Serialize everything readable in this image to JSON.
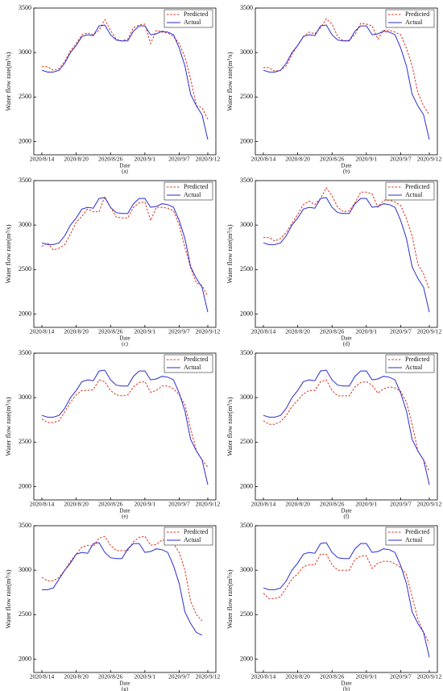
{
  "chart_data": [
    {
      "type": "line",
      "label": "(a)",
      "x_label": "Date",
      "y_label": "Water flow rate(m³/s)",
      "legend": "upper right",
      "categories": [
        "2020/8/14",
        null,
        null,
        null,
        null,
        null,
        "2020/8/20",
        null,
        null,
        null,
        null,
        null,
        "2020/8/26",
        null,
        null,
        null,
        null,
        null,
        "2020/9/1",
        null,
        null,
        null,
        null,
        null,
        "2020/9/7",
        null,
        null,
        null,
        null,
        "2020/9/12"
      ],
      "ylim": [
        1850,
        3500
      ],
      "yticks": [
        2000,
        2500,
        3000,
        3500
      ],
      "series": [
        {
          "name": "Predicted",
          "color": "#d9341f",
          "linestyle": "dashed",
          "values": [
            2840,
            2840,
            2800,
            2820,
            2900,
            3020,
            3100,
            3200,
            3220,
            3200,
            3250,
            3370,
            3250,
            3150,
            3130,
            3150,
            3280,
            3310,
            3320,
            3100,
            3250,
            3230,
            3220,
            3180,
            3100,
            2950,
            2700,
            2400,
            2380,
            2250
          ]
        },
        {
          "name": "Actual",
          "color": "#2b2bd0",
          "linestyle": "solid",
          "values": [
            2800,
            2780,
            2780,
            2800,
            2880,
            3000,
            3080,
            3180,
            3200,
            3190,
            3300,
            3310,
            3200,
            3140,
            3130,
            3130,
            3240,
            3300,
            3300,
            3200,
            3210,
            3240,
            3230,
            3200,
            3050,
            2850,
            2530,
            2400,
            2300,
            2020
          ]
        }
      ]
    },
    {
      "type": "line",
      "label": "(b)",
      "x_label": "Date",
      "y_label": "Water flow rate(m³/s)",
      "legend": "upper right",
      "categories": [
        "2020/8/14",
        null,
        null,
        null,
        null,
        null,
        "2020/8/20",
        null,
        null,
        null,
        null,
        null,
        "2020/8/26",
        null,
        null,
        null,
        null,
        null,
        "2020/9/1",
        null,
        null,
        null,
        null,
        null,
        "2020/9/7",
        null,
        null,
        null,
        null,
        "2020/9/12"
      ],
      "ylim": [
        1850,
        3500
      ],
      "yticks": [
        2000,
        2500,
        3000,
        3500
      ],
      "series": [
        {
          "name": "Predicted",
          "color": "#d9341f",
          "linestyle": "dashed",
          "values": [
            2830,
            2830,
            2790,
            2800,
            2850,
            2980,
            3080,
            3180,
            3230,
            3210,
            3280,
            3380,
            3320,
            3180,
            3130,
            3140,
            3200,
            3330,
            3320,
            3300,
            3150,
            3250,
            3250,
            3230,
            3200,
            3050,
            2850,
            2550,
            2400,
            2300
          ]
        },
        {
          "name": "Actual",
          "color": "#2b2bd0",
          "linestyle": "solid",
          "values": [
            2800,
            2780,
            2780,
            2800,
            2880,
            3000,
            3080,
            3180,
            3200,
            3190,
            3300,
            3310,
            3200,
            3140,
            3130,
            3130,
            3240,
            3300,
            3300,
            3200,
            3210,
            3240,
            3230,
            3200,
            3050,
            2850,
            2530,
            2400,
            2300,
            2020
          ]
        }
      ]
    },
    {
      "type": "line",
      "label": "(c)",
      "x_label": "Date",
      "y_label": "Water flow rate(m³/s)",
      "legend": "upper right",
      "categories": [
        "2020/8/14",
        null,
        null,
        null,
        null,
        null,
        "2020/8/20",
        null,
        null,
        null,
        null,
        null,
        "2020/8/26",
        null,
        null,
        null,
        null,
        null,
        "2020/9/1",
        null,
        null,
        null,
        null,
        null,
        "2020/9/7",
        null,
        null,
        null,
        null,
        "2020/9/12"
      ],
      "ylim": [
        1850,
        3500
      ],
      "yticks": [
        2000,
        2500,
        3000,
        3500
      ],
      "series": [
        {
          "name": "Predicted",
          "color": "#d9341f",
          "linestyle": "dashed",
          "values": [
            2760,
            2800,
            2720,
            2740,
            2780,
            2900,
            3030,
            3100,
            3180,
            3150,
            3150,
            3320,
            3200,
            3090,
            3080,
            3080,
            3200,
            3250,
            3260,
            3050,
            3200,
            3200,
            3190,
            3160,
            3000,
            2750,
            2520,
            2350,
            2320,
            2200
          ]
        },
        {
          "name": "Actual",
          "color": "#2b2bd0",
          "linestyle": "solid",
          "values": [
            2800,
            2780,
            2780,
            2800,
            2880,
            3000,
            3080,
            3180,
            3200,
            3190,
            3300,
            3310,
            3200,
            3140,
            3130,
            3130,
            3240,
            3300,
            3300,
            3200,
            3210,
            3240,
            3230,
            3200,
            3050,
            2850,
            2530,
            2400,
            2300,
            2020
          ]
        }
      ]
    },
    {
      "type": "line",
      "label": "(d)",
      "x_label": "Date",
      "y_label": "Water flow rate(m³/s)",
      "legend": "upper right",
      "categories": [
        "2020/8/14",
        null,
        null,
        null,
        null,
        null,
        "2020/8/20",
        null,
        null,
        null,
        null,
        null,
        "2020/8/26",
        null,
        null,
        null,
        null,
        null,
        "2020/9/1",
        null,
        null,
        null,
        null,
        null,
        "2020/9/7",
        null,
        null,
        null,
        null,
        "2020/9/12"
      ],
      "ylim": [
        1850,
        3500
      ],
      "yticks": [
        2000,
        2500,
        3000,
        3500
      ],
      "series": [
        {
          "name": "Predicted",
          "color": "#d9341f",
          "linestyle": "dashed",
          "values": [
            2860,
            2860,
            2820,
            2850,
            2920,
            3020,
            3120,
            3230,
            3270,
            3230,
            3300,
            3420,
            3330,
            3200,
            3150,
            3160,
            3250,
            3370,
            3370,
            3350,
            3200,
            3280,
            3280,
            3260,
            3220,
            3070,
            2880,
            2560,
            2450,
            2280
          ]
        },
        {
          "name": "Actual",
          "color": "#2b2bd0",
          "linestyle": "solid",
          "values": [
            2800,
            2780,
            2780,
            2800,
            2880,
            3000,
            3080,
            3180,
            3200,
            3190,
            3300,
            3310,
            3200,
            3140,
            3130,
            3130,
            3240,
            3300,
            3300,
            3200,
            3210,
            3240,
            3230,
            3200,
            3050,
            2850,
            2530,
            2400,
            2300,
            2020
          ]
        }
      ]
    },
    {
      "type": "line",
      "label": "(e)",
      "x_label": "Date",
      "y_label": "Water flow rate(m³/s)",
      "legend": "upper right",
      "categories": [
        "2020/8/14",
        null,
        null,
        null,
        null,
        null,
        "2020/8/20",
        null,
        null,
        null,
        null,
        null,
        "2020/8/26",
        null,
        null,
        null,
        null,
        null,
        "2020/9/1",
        null,
        null,
        null,
        null,
        null,
        "2020/9/7",
        null,
        null,
        null,
        null,
        "2020/9/12"
      ],
      "ylim": [
        1850,
        3500
      ],
      "yticks": [
        2000,
        2500,
        3000,
        3500
      ],
      "series": [
        {
          "name": "Predicted",
          "color": "#d9341f",
          "linestyle": "dashed",
          "values": [
            2760,
            2720,
            2720,
            2740,
            2840,
            2950,
            3030,
            3080,
            3080,
            3090,
            3200,
            3180,
            3080,
            3030,
            3020,
            3030,
            3120,
            3170,
            3180,
            3060,
            3080,
            3130,
            3130,
            3100,
            3030,
            2920,
            2650,
            2400,
            2300,
            2220
          ]
        },
        {
          "name": "Actual",
          "color": "#2b2bd0",
          "linestyle": "solid",
          "values": [
            2800,
            2780,
            2780,
            2800,
            2880,
            3000,
            3080,
            3180,
            3200,
            3190,
            3300,
            3310,
            3200,
            3140,
            3130,
            3130,
            3240,
            3300,
            3300,
            3200,
            3210,
            3240,
            3230,
            3200,
            3050,
            2850,
            2530,
            2400,
            2300,
            2020
          ]
        }
      ]
    },
    {
      "type": "line",
      "label": "(f)",
      "x_label": "Date",
      "y_label": "Water flow rate(m³/s)",
      "legend": "upper right",
      "categories": [
        "2020/8/14",
        null,
        null,
        null,
        null,
        null,
        "2020/8/20",
        null,
        null,
        null,
        null,
        null,
        "2020/8/26",
        null,
        null,
        null,
        null,
        null,
        "2020/9/1",
        null,
        null,
        null,
        null,
        null,
        "2020/9/7",
        null,
        null,
        null,
        null,
        "2020/9/12"
      ],
      "ylim": [
        1850,
        3500
      ],
      "yticks": [
        2000,
        2500,
        3000,
        3500
      ],
      "series": [
        {
          "name": "Predicted",
          "color": "#d9341f",
          "linestyle": "dashed",
          "values": [
            2740,
            2700,
            2700,
            2730,
            2800,
            2900,
            2970,
            3040,
            3080,
            3080,
            3180,
            3200,
            3080,
            3020,
            3020,
            3020,
            3120,
            3170,
            3180,
            3140,
            3050,
            3100,
            3120,
            3110,
            3070,
            2950,
            2700,
            2400,
            2300,
            2170
          ]
        },
        {
          "name": "Actual",
          "color": "#2b2bd0",
          "linestyle": "solid",
          "values": [
            2800,
            2780,
            2780,
            2800,
            2880,
            3000,
            3080,
            3180,
            3200,
            3190,
            3300,
            3310,
            3200,
            3140,
            3130,
            3130,
            3240,
            3300,
            3300,
            3200,
            3210,
            3240,
            3230,
            3200,
            3050,
            2850,
            2530,
            2400,
            2300,
            2020
          ]
        }
      ]
    },
    {
      "type": "line",
      "label": "(g)",
      "x_label": "Date",
      "y_label": "Water flow rate(m³/s)",
      "legend": "upper right",
      "categories": [
        "2020/8/14",
        null,
        null,
        null,
        null,
        null,
        "2020/8/20",
        null,
        null,
        null,
        null,
        null,
        "2020/8/26",
        null,
        null,
        null,
        null,
        null,
        "2020/9/1",
        null,
        null,
        null,
        null,
        null,
        "2020/9/7",
        null,
        null,
        null,
        null,
        "2020/9/12"
      ],
      "ylim": [
        1850,
        3500
      ],
      "yticks": [
        2000,
        2500,
        3000,
        3500
      ],
      "series": [
        {
          "name": "Predicted",
          "color": "#d9341f",
          "linestyle": "dashed",
          "values": [
            2920,
            2880,
            2880,
            2920,
            3000,
            3100,
            3180,
            3260,
            3280,
            3270,
            3360,
            3380,
            3280,
            3220,
            3220,
            3220,
            3320,
            3370,
            3380,
            3280,
            3290,
            3340,
            3330,
            3300,
            3200,
            3000,
            2650,
            2500,
            2430,
            null
          ]
        },
        {
          "name": "Actual",
          "color": "#2b2bd0",
          "linestyle": "solid",
          "values": [
            2780,
            2780,
            2800,
            2900,
            3000,
            3080,
            3180,
            3200,
            3190,
            3300,
            3310,
            3200,
            3140,
            3130,
            3130,
            3240,
            3300,
            3300,
            3200,
            3210,
            3240,
            3230,
            3200,
            3050,
            2850,
            2530,
            2400,
            2300,
            2270,
            null
          ]
        }
      ]
    },
    {
      "type": "line",
      "label": "(h)",
      "x_label": "Date",
      "y_label": "Water flow rate(m³/s)",
      "legend": "upper right",
      "categories": [
        "2020/8/14",
        null,
        null,
        null,
        null,
        null,
        "2020/8/20",
        null,
        null,
        null,
        null,
        null,
        "2020/8/26",
        null,
        null,
        null,
        null,
        null,
        "2020/9/1",
        null,
        null,
        null,
        null,
        null,
        "2020/9/7",
        null,
        null,
        null,
        null,
        "2020/9/12"
      ],
      "ylim": [
        1850,
        3500
      ],
      "yticks": [
        2000,
        2500,
        3000,
        3500
      ],
      "series": [
        {
          "name": "Predicted",
          "color": "#d9341f",
          "linestyle": "dashed",
          "values": [
            2740,
            2680,
            2680,
            2700,
            2800,
            2900,
            2960,
            3040,
            3060,
            3060,
            3180,
            3180,
            3060,
            3000,
            3000,
            3000,
            3120,
            3160,
            3160,
            3020,
            3080,
            3100,
            3100,
            3070,
            3030,
            2950,
            2700,
            2450,
            2300,
            2180
          ]
        },
        {
          "name": "Actual",
          "color": "#2b2bd0",
          "linestyle": "solid",
          "values": [
            2800,
            2780,
            2780,
            2800,
            2880,
            3000,
            3080,
            3180,
            3200,
            3190,
            3300,
            3310,
            3200,
            3140,
            3130,
            3130,
            3240,
            3300,
            3300,
            3200,
            3210,
            3240,
            3230,
            3200,
            3050,
            2850,
            2530,
            2400,
            2300,
            2020
          ]
        }
      ]
    }
  ]
}
